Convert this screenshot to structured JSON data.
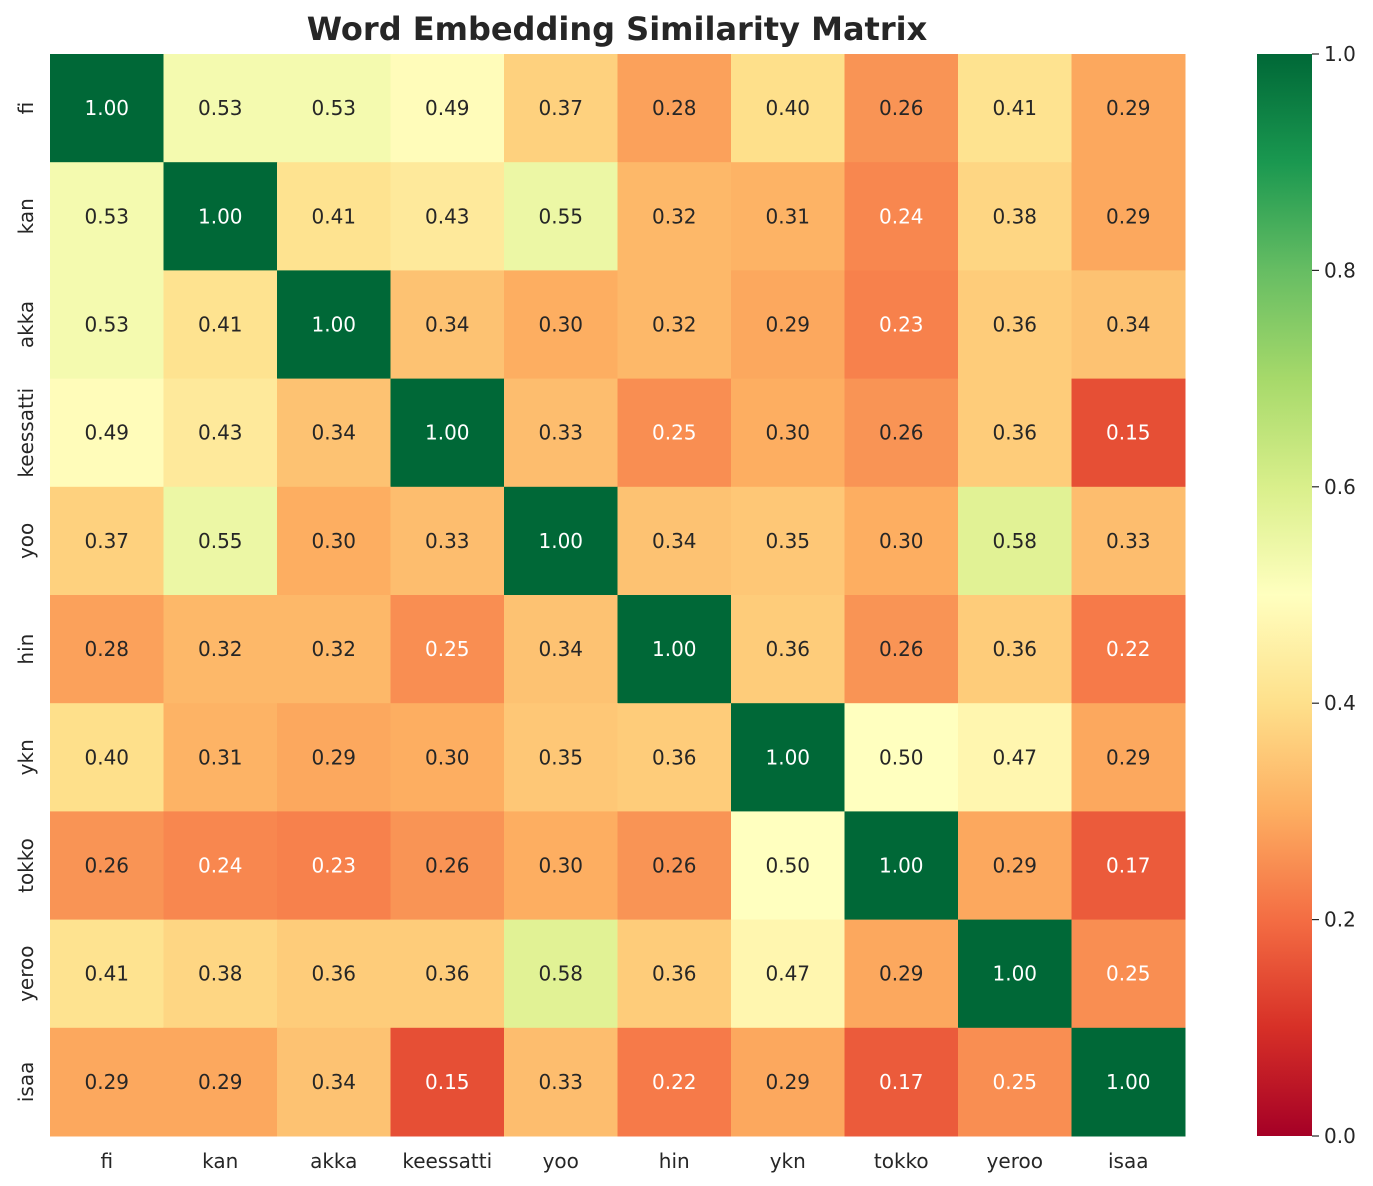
{
  "chart_data": {
    "type": "heatmap",
    "title": "Word Embedding Similarity Matrix",
    "xlabel": "",
    "ylabel": "",
    "x_labels": [
      "fi",
      "kan",
      "akka",
      "keessatti",
      "yoo",
      "hin",
      "ykn",
      "tokko",
      "yeroo",
      "isaa"
    ],
    "y_labels": [
      "fi",
      "kan",
      "akka",
      "keessatti",
      "yoo",
      "hin",
      "ykn",
      "tokko",
      "yeroo",
      "isaa"
    ],
    "values": [
      [
        1.0,
        0.53,
        0.53,
        0.49,
        0.37,
        0.28,
        0.4,
        0.26,
        0.41,
        0.29
      ],
      [
        0.53,
        1.0,
        0.41,
        0.43,
        0.55,
        0.32,
        0.31,
        0.24,
        0.38,
        0.29
      ],
      [
        0.53,
        0.41,
        1.0,
        0.34,
        0.3,
        0.32,
        0.29,
        0.23,
        0.36,
        0.34
      ],
      [
        0.49,
        0.43,
        0.34,
        1.0,
        0.33,
        0.25,
        0.3,
        0.26,
        0.36,
        0.15
      ],
      [
        0.37,
        0.55,
        0.3,
        0.33,
        1.0,
        0.34,
        0.35,
        0.3,
        0.58,
        0.33
      ],
      [
        0.28,
        0.32,
        0.32,
        0.25,
        0.34,
        1.0,
        0.36,
        0.26,
        0.36,
        0.22
      ],
      [
        0.4,
        0.31,
        0.29,
        0.3,
        0.35,
        0.36,
        1.0,
        0.5,
        0.47,
        0.29
      ],
      [
        0.26,
        0.24,
        0.23,
        0.26,
        0.3,
        0.26,
        0.5,
        1.0,
        0.29,
        0.17
      ],
      [
        0.41,
        0.38,
        0.36,
        0.36,
        0.58,
        0.36,
        0.47,
        0.29,
        1.0,
        0.25
      ],
      [
        0.29,
        0.29,
        0.34,
        0.15,
        0.33,
        0.22,
        0.29,
        0.17,
        0.25,
        1.0
      ]
    ],
    "value_format": "0.00",
    "colormap": "RdYlGn",
    "vmin": 0.0,
    "vmax": 1.0,
    "colorbar_ticks": [
      "0.0",
      "0.2",
      "0.4",
      "0.6",
      "0.8",
      "1.0"
    ],
    "grid": false
  },
  "colormap_stops": [
    "#a50026",
    "#d73027",
    "#f46d43",
    "#fdae61",
    "#fee08b",
    "#ffffbf",
    "#d9ef8b",
    "#a6d96a",
    "#66bd63",
    "#1a9850",
    "#006837"
  ]
}
